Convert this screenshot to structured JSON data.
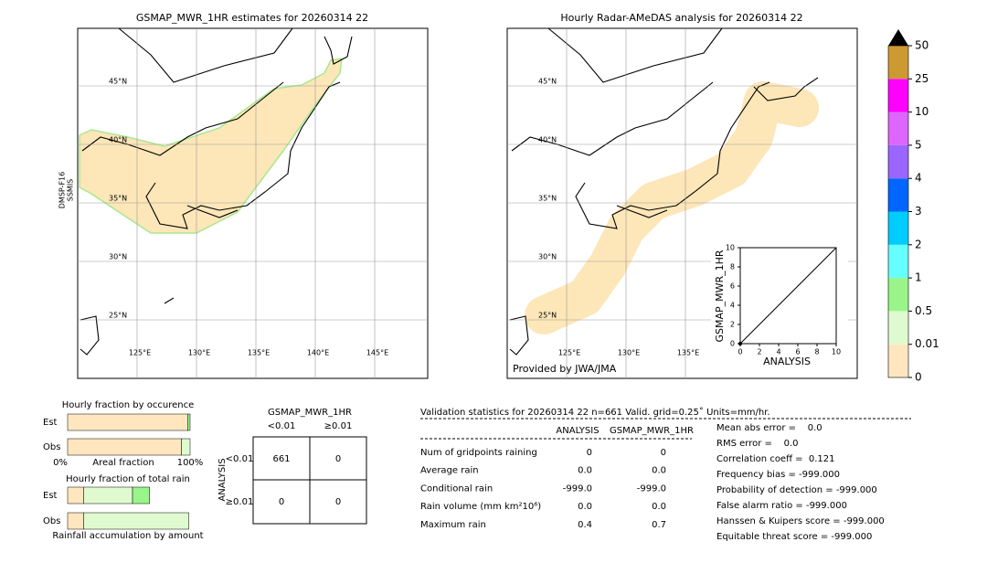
{
  "left_map": {
    "title": "GSMAP_MWR_1HR estimates for 20260314 22",
    "side_label": [
      "DMSP-F16",
      "SSMIS"
    ],
    "lat_labels": [
      "45°N",
      "40°N",
      "35°N",
      "30°N",
      "25°N"
    ],
    "lon_labels": [
      "125°E",
      "130°E",
      "135°E",
      "140°E",
      "145°E"
    ]
  },
  "right_map": {
    "title": "Hourly Radar-AMeDAS analysis for 20260314 22",
    "lat_labels": [
      "45°N",
      "40°N",
      "35°N",
      "30°N",
      "25°N"
    ],
    "lon_labels": [
      "125°E",
      "130°E",
      "135°E"
    ],
    "credit": "Provided by JWA/JMA"
  },
  "inset": {
    "type": "scatter",
    "y_label": "GSMAP_MWR_1HR",
    "x_label": "ANALYSIS",
    "xlim": [
      0,
      10
    ],
    "ylim": [
      0,
      10
    ],
    "xticks": [
      0,
      2,
      4,
      6,
      8,
      10
    ],
    "yticks": [
      0,
      2,
      4,
      6,
      8,
      10
    ],
    "x": [
      0
    ],
    "y": [
      0
    ],
    "color": "#000000"
  },
  "colorbar": {
    "ticks": [
      0,
      0.01,
      0.5,
      1,
      2,
      3,
      4,
      5,
      10,
      25,
      50
    ],
    "colors": [
      "#ffe6bf",
      "#e0fad0",
      "#99f58a",
      "#66ffff",
      "#00ccff",
      "#0066ff",
      "#9966ff",
      "#dd66ff",
      "#ff00ff",
      "#cc9933"
    ],
    "extend_color": "#000000"
  },
  "occurrence": {
    "title": "Hourly fraction by occurence",
    "rows": [
      "Est",
      "Obs"
    ],
    "x_labels": [
      "0%",
      "Areal fraction",
      "100%"
    ],
    "series": [
      {
        "values": [
          98,
          2
        ],
        "colors": [
          "#ffe6bf",
          "#99f58a"
        ]
      },
      {
        "values": [
          93,
          7
        ],
        "colors": [
          "#ffe6bf",
          "#e0fad0"
        ]
      }
    ]
  },
  "total_rain": {
    "title": "Hourly fraction of total rain",
    "rows": [
      "Est",
      "Obs"
    ],
    "footer": "Rainfall accumulation by amount",
    "series": [
      {
        "values": [
          13,
          40,
          14
        ],
        "colors": [
          "#ffe6bf",
          "#e0fad0",
          "#99f58a"
        ]
      },
      {
        "values": [
          13,
          86
        ],
        "colors": [
          "#ffe6bf",
          "#e0fad0"
        ]
      }
    ]
  },
  "contingency": {
    "header": "GSMAP_MWR_1HR",
    "columns": [
      "<0.01",
      "≥0.01"
    ],
    "row_title": "ANALYSIS",
    "rows": [
      "<0.01",
      "≥0.01"
    ],
    "cells": [
      [
        "661",
        "0"
      ],
      [
        "0",
        "0"
      ]
    ]
  },
  "validation": {
    "title": "Validation statistics for 20260314 22  n=661 Valid. grid=0.25˚ Units=mm/hr.",
    "columns": [
      "ANALYSIS",
      "GSMAP_MWR_1HR"
    ],
    "rows": [
      [
        "Num of gridpoints raining",
        "0",
        "0"
      ],
      [
        "Average rain",
        "0.0",
        "0.0"
      ],
      [
        "Conditional rain",
        "-999.0",
        "-999.0"
      ],
      [
        "Rain volume (mm km²10⁶)",
        "0.0",
        "0.0"
      ],
      [
        "Maximum rain",
        "0.4",
        "0.7"
      ]
    ],
    "scores": [
      "Mean abs error =    0.0",
      "RMS error =    0.0",
      "Correlation coeff =  0.121",
      "Frequency bias = -999.000",
      "Probability of detection = -999.000",
      "False alarm ratio = -999.000",
      "Hanssen & Kuipers score = -999.000",
      "Equitable threat score = -999.000"
    ]
  }
}
